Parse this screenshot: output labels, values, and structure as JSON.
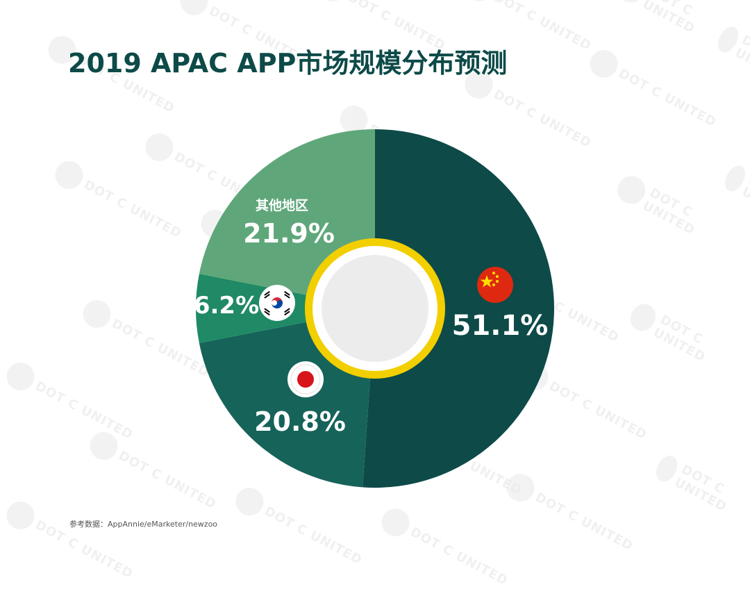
{
  "title": "2019 APAC APP市场规模分布预测",
  "source_label": "参考数据：AppAnnie/eMarketer/newzoo",
  "watermark_text": "DOT C UNITED",
  "colors": {
    "title": "#0d4a48",
    "china": "#0d4a48",
    "japan": "#16635a",
    "korea": "#1f8a65",
    "other": "#5fa77a",
    "ring": "#f2cf00",
    "center": "#ececec"
  },
  "chart_data": {
    "type": "pie",
    "style": "donut",
    "start": "top, clockwise",
    "slices": [
      {
        "key": "china",
        "value": 51.1,
        "label": "51.1%",
        "name": "",
        "flag": "china-flag-icon",
        "color": "#0d4a48"
      },
      {
        "key": "japan",
        "value": 20.8,
        "label": "20.8%",
        "name": "",
        "flag": "japan-flag-icon",
        "color": "#16635a"
      },
      {
        "key": "korea",
        "value": 6.2,
        "label": "6.2%",
        "name": "",
        "flag": "korea-flag-icon",
        "color": "#1f8a65"
      },
      {
        "key": "other",
        "value": 21.9,
        "label": "21.9%",
        "name": "其他地区",
        "flag": "",
        "color": "#5fa77a"
      }
    ]
  }
}
